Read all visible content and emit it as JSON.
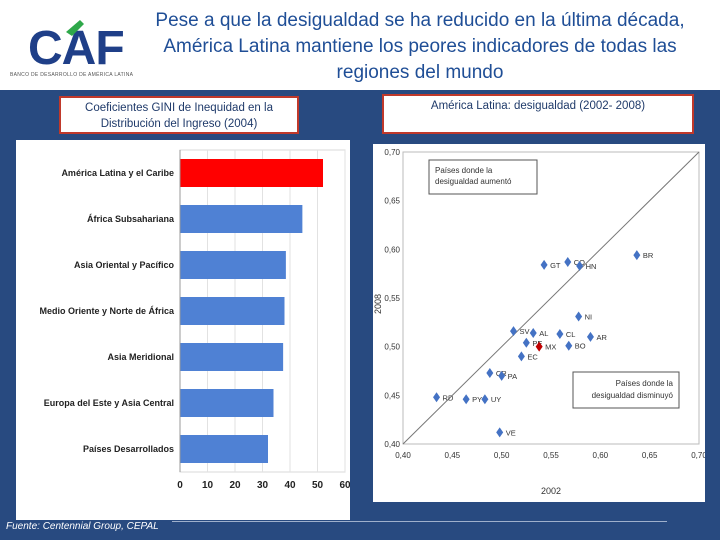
{
  "header": {
    "title": "Pese a que la desigualdad se ha reducido en la última década, América Latina mantiene los peores indicadores de todas las regiones del mundo",
    "logo_text": "CAF",
    "logo_tagline": "BANCO DE DESARROLLO DE AMÉRICA LATINA"
  },
  "left_label": "Coeficientes GINI de Inequidad en la Distribución del Ingreso (2004)",
  "right_label": "América Latina: desigualdad (2002- 2008)",
  "source": "Fuente: Centennial Group, CEPAL",
  "colors": {
    "highlight_bar": "#ff0000",
    "bar": "#4f81d4",
    "point": "#4472c4",
    "highlight_point": "#c00000",
    "panel": "#284a80",
    "title": "#1f4e96"
  },
  "chart_data": [
    {
      "type": "bar",
      "orientation": "horizontal",
      "title": "Coeficientes GINI de Inequidad en la Distribución del Ingreso (2004)",
      "categories": [
        "América Latina y el Caribe",
        "África Subsahariana",
        "Asia Oriental y Pacífico",
        "Medio Oriente y Norte de África",
        "Asia Meridional",
        "Europa del Este y Asia Central",
        "Países Desarrollados"
      ],
      "values": [
        52,
        44.5,
        38.5,
        38,
        37.5,
        34,
        32
      ],
      "highlight_index": 0,
      "xlim": [
        0,
        60
      ],
      "xticks": [
        "0",
        "10",
        "20",
        "30",
        "40",
        "50",
        "60"
      ]
    },
    {
      "type": "scatter",
      "title": "América Latina: desigualdad (2002- 2008)",
      "xlabel": "2002",
      "ylabel": "2008",
      "xlim": [
        0.4,
        0.7
      ],
      "ylim": [
        0.4,
        0.7
      ],
      "xticks": [
        "0,40",
        "0,45",
        "0,50",
        "0,55",
        "0,60",
        "0,65",
        "0,70"
      ],
      "yticks": [
        "0,40",
        "0,45",
        "0,50",
        "0,55",
        "0,60",
        "0,65",
        "0,70"
      ],
      "reference_line": "45-degree",
      "annotation_above": "Países donde la desigualdad aumentó",
      "annotation_below": "Países donde la desigualdad disminuyó",
      "points": [
        {
          "label": "BR",
          "x": 0.637,
          "y": 0.594
        },
        {
          "label": "CO",
          "x": 0.567,
          "y": 0.587
        },
        {
          "label": "HN",
          "x": 0.579,
          "y": 0.583
        },
        {
          "label": "GT",
          "x": 0.543,
          "y": 0.584
        },
        {
          "label": "NI",
          "x": 0.578,
          "y": 0.531
        },
        {
          "label": "SV",
          "x": 0.512,
          "y": 0.516
        },
        {
          "label": "AL",
          "x": 0.532,
          "y": 0.514
        },
        {
          "label": "CL",
          "x": 0.559,
          "y": 0.513
        },
        {
          "label": "AR",
          "x": 0.59,
          "y": 0.51
        },
        {
          "label": "BO",
          "x": 0.568,
          "y": 0.501
        },
        {
          "label": "PE",
          "x": 0.525,
          "y": 0.504
        },
        {
          "label": "MX",
          "x": 0.538,
          "y": 0.5,
          "highlight": true
        },
        {
          "label": "EC",
          "x": 0.52,
          "y": 0.49
        },
        {
          "label": "CR",
          "x": 0.488,
          "y": 0.473
        },
        {
          "label": "PA",
          "x": 0.5,
          "y": 0.47
        },
        {
          "label": "UY",
          "x": 0.483,
          "y": 0.446
        },
        {
          "label": "PY",
          "x": 0.464,
          "y": 0.446
        },
        {
          "label": "VE",
          "x": 0.498,
          "y": 0.412
        },
        {
          "label": "RD",
          "x": 0.434,
          "y": 0.448
        }
      ]
    }
  ]
}
